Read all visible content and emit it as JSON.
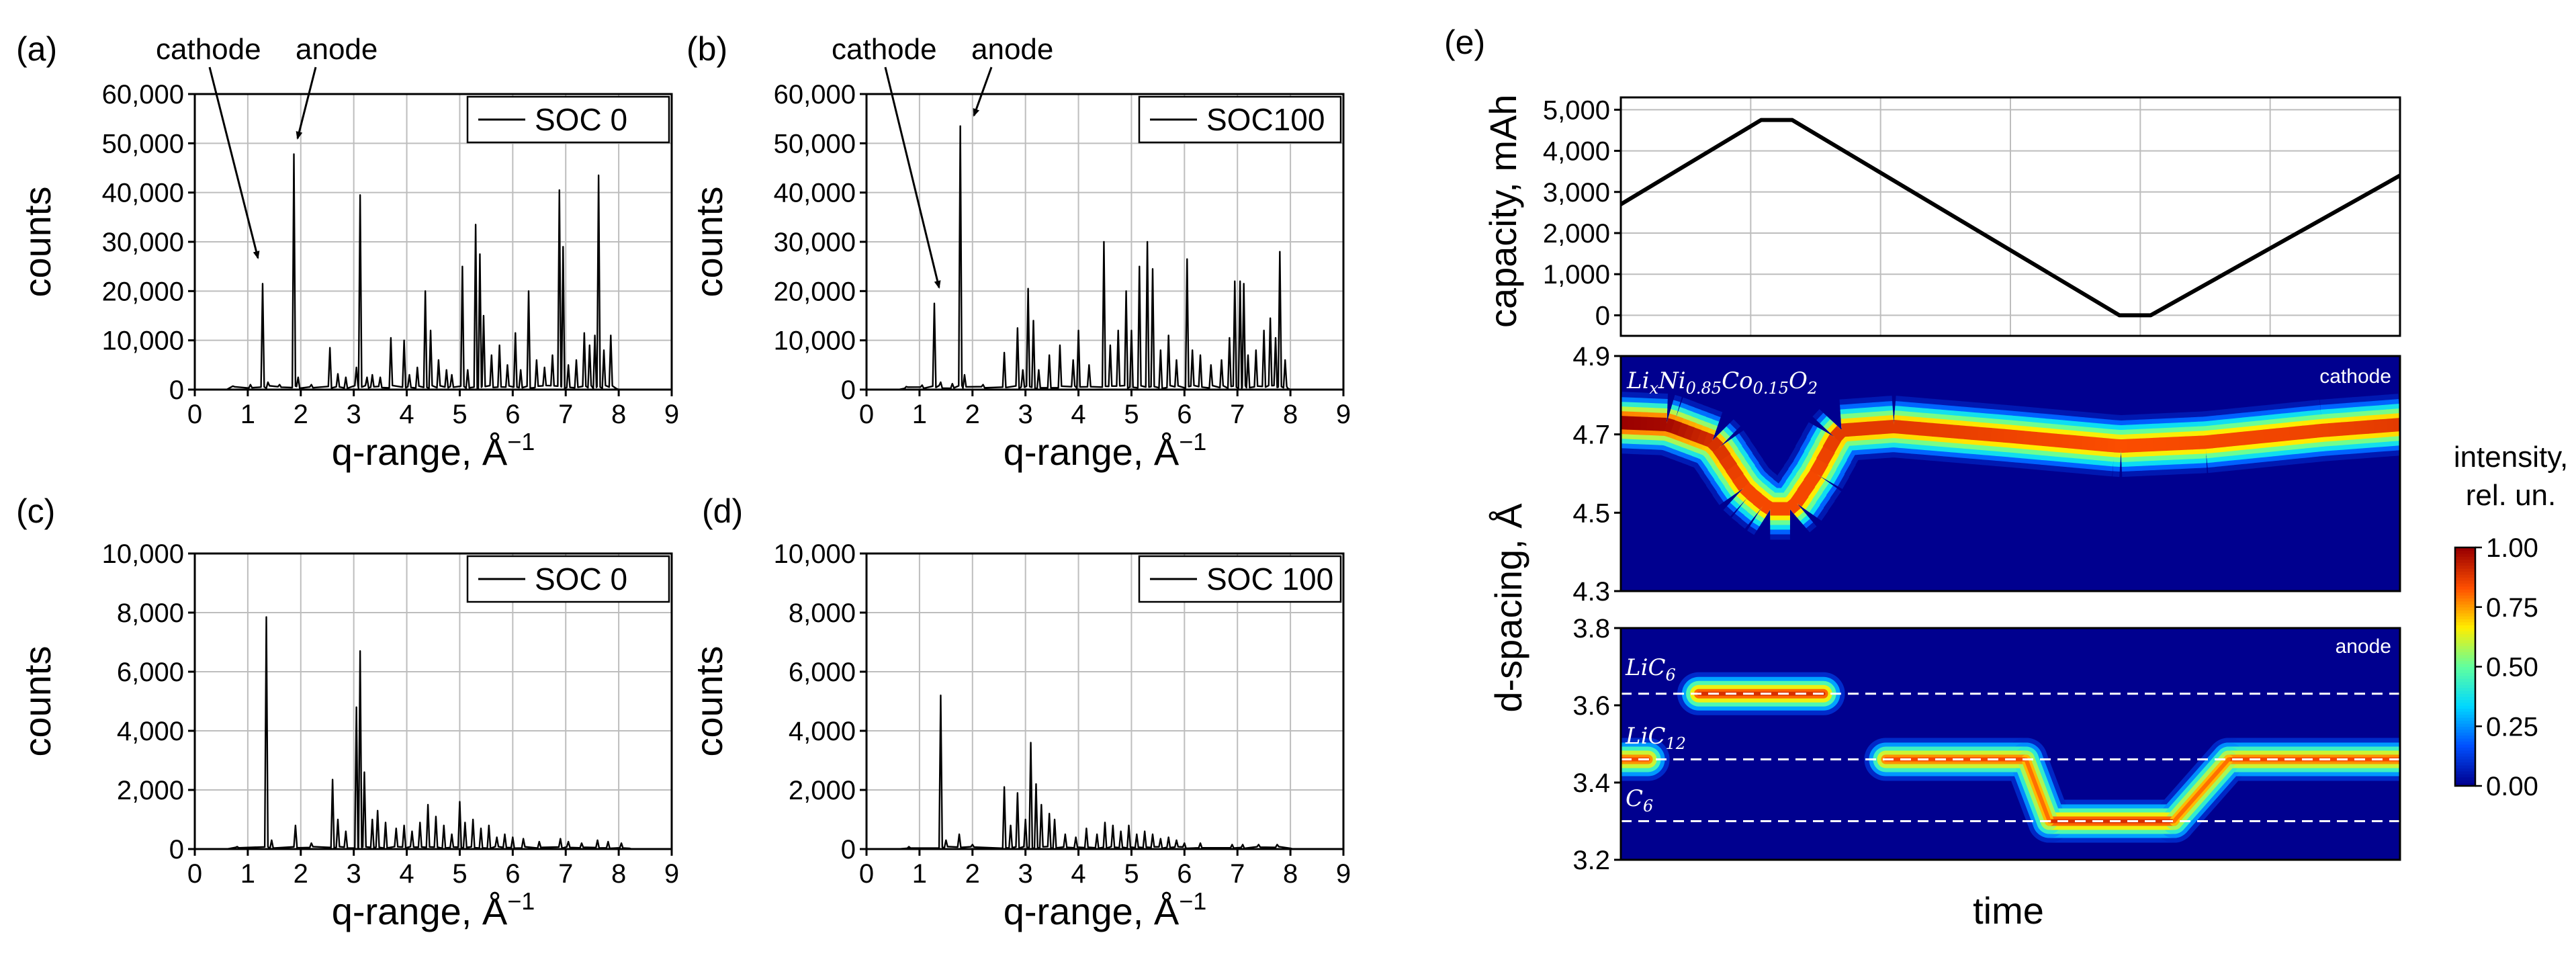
{
  "panels": [
    {
      "letter": "(a)",
      "legend": "SOC 0"
    },
    {
      "letter": "(b)",
      "legend": "SOC100"
    },
    {
      "letter": "(c)",
      "legend": "SOC 0"
    },
    {
      "letter": "(d)",
      "legend": "SOC 100"
    },
    {
      "letter": "(e)"
    }
  ],
  "annotations": {
    "cathode": "cathode",
    "anode": "anode"
  },
  "xlabel_main": "q-range, Å",
  "xlabel_exp": "−1",
  "ylabel_counts": "counts",
  "e": {
    "capacity_label": "capacity, mAh",
    "dspacing_label": "d-spacing, Å",
    "time_label": "time",
    "cathode_tag": "cathode",
    "anode_tag": "anode",
    "formula": {
      "base": "Li",
      "s1": "x",
      "mid1": "Ni",
      "s2": "0.85",
      "mid2": "Co",
      "s3": "0.15",
      "mid3": "O",
      "s4": "2"
    },
    "liC6": {
      "base": "LiC",
      "sub": "6"
    },
    "liC12": {
      "base": "LiC",
      "sub": "12"
    },
    "c6": {
      "base": "C",
      "sub": "6"
    },
    "colorbar_title1": "intensity,",
    "colorbar_title2": "rel. un.",
    "colormap": [
      "#00008f",
      "#0050ff",
      "#00d8ff",
      "#60ff9f",
      "#ffee00",
      "#ff5000",
      "#9a0000"
    ]
  },
  "chart_data": [
    {
      "panel": "(a)",
      "type": "line",
      "series": [
        {
          "name": "SOC 0"
        }
      ],
      "xlabel": "q-range, Å−1",
      "ylabel": "counts",
      "xlim": [
        0,
        9
      ],
      "ylim": [
        0,
        60000
      ],
      "xticks": [
        "0",
        "1",
        "2",
        "3",
        "4",
        "5",
        "6",
        "7",
        "8",
        "9"
      ],
      "yticks": [
        "0",
        "10,000",
        "20,000",
        "30,000",
        "40,000",
        "50,000",
        "60,000"
      ],
      "baseline": 600,
      "xmin_signal": 0.6,
      "xmax_signal": 7.95,
      "peaks": [
        [
          0.72,
          700
        ],
        [
          1.05,
          1000
        ],
        [
          1.28,
          21500
        ],
        [
          1.38,
          1500
        ],
        [
          1.6,
          1000
        ],
        [
          1.87,
          47800
        ],
        [
          1.95,
          2500
        ],
        [
          2.2,
          1000
        ],
        [
          2.55,
          8500
        ],
        [
          2.7,
          3200
        ],
        [
          2.85,
          2500
        ],
        [
          3.05,
          4500
        ],
        [
          3.12,
          39500
        ],
        [
          3.25,
          2500
        ],
        [
          3.35,
          3000
        ],
        [
          3.5,
          2500
        ],
        [
          3.7,
          10500
        ],
        [
          3.95,
          10000
        ],
        [
          4.05,
          3000
        ],
        [
          4.2,
          4500
        ],
        [
          4.35,
          20000
        ],
        [
          4.45,
          12000
        ],
        [
          4.6,
          6000
        ],
        [
          4.75,
          4000
        ],
        [
          4.85,
          3000
        ],
        [
          5.05,
          25000
        ],
        [
          5.15,
          4000
        ],
        [
          5.3,
          33500
        ],
        [
          5.38,
          27500
        ],
        [
          5.45,
          15000
        ],
        [
          5.6,
          7000
        ],
        [
          5.75,
          9000
        ],
        [
          5.9,
          5000
        ],
        [
          6.05,
          11500
        ],
        [
          6.15,
          4000
        ],
        [
          6.3,
          20000
        ],
        [
          6.45,
          6000
        ],
        [
          6.6,
          4500
        ],
        [
          6.75,
          7000
        ],
        [
          6.88,
          40500
        ],
        [
          6.95,
          29000
        ],
        [
          7.05,
          5000
        ],
        [
          7.2,
          6000
        ],
        [
          7.35,
          11500
        ],
        [
          7.45,
          9000
        ],
        [
          7.55,
          11000
        ],
        [
          7.62,
          43500
        ],
        [
          7.72,
          8000
        ],
        [
          7.85,
          11000
        ]
      ],
      "annotations": [
        "cathode",
        "anode"
      ]
    },
    {
      "panel": "(b)",
      "type": "line",
      "series": [
        {
          "name": "SOC100"
        }
      ],
      "xlabel": "q-range, Å−1",
      "ylabel": "counts",
      "xlim": [
        0,
        9
      ],
      "ylim": [
        0,
        60000
      ],
      "xticks": [
        "0",
        "1",
        "2",
        "3",
        "4",
        "5",
        "6",
        "7",
        "8",
        "9"
      ],
      "yticks": [
        "0",
        "10,000",
        "20,000",
        "30,000",
        "40,000",
        "50,000",
        "60,000"
      ],
      "baseline": 600,
      "xmin_signal": 0.6,
      "xmax_signal": 7.95,
      "peaks": [
        [
          0.75,
          600
        ],
        [
          1.05,
          900
        ],
        [
          1.28,
          17500
        ],
        [
          1.4,
          1500
        ],
        [
          1.62,
          1200
        ],
        [
          1.77,
          53500
        ],
        [
          1.85,
          3000
        ],
        [
          2.2,
          1000
        ],
        [
          2.6,
          7500
        ],
        [
          2.85,
          12500
        ],
        [
          2.95,
          4000
        ],
        [
          3.05,
          20500
        ],
        [
          3.15,
          14000
        ],
        [
          3.25,
          4000
        ],
        [
          3.45,
          7000
        ],
        [
          3.65,
          9000
        ],
        [
          3.9,
          6000
        ],
        [
          4.0,
          12000
        ],
        [
          4.2,
          5000
        ],
        [
          4.48,
          30000
        ],
        [
          4.6,
          9000
        ],
        [
          4.75,
          12000
        ],
        [
          4.9,
          20000
        ],
        [
          5.0,
          12000
        ],
        [
          5.15,
          25000
        ],
        [
          5.3,
          30000
        ],
        [
          5.4,
          24500
        ],
        [
          5.55,
          8000
        ],
        [
          5.7,
          11000
        ],
        [
          5.85,
          6000
        ],
        [
          6.05,
          26500
        ],
        [
          6.15,
          8000
        ],
        [
          6.3,
          7000
        ],
        [
          6.5,
          5000
        ],
        [
          6.7,
          6000
        ],
        [
          6.85,
          10500
        ],
        [
          6.95,
          22000
        ],
        [
          7.05,
          22000
        ],
        [
          7.12,
          21500
        ],
        [
          7.2,
          7000
        ],
        [
          7.35,
          8000
        ],
        [
          7.5,
          12000
        ],
        [
          7.62,
          14500
        ],
        [
          7.72,
          10500
        ],
        [
          7.8,
          28000
        ],
        [
          7.9,
          6000
        ]
      ],
      "annotations": [
        "cathode",
        "anode"
      ]
    },
    {
      "panel": "(c)",
      "type": "line",
      "series": [
        {
          "name": "SOC 0"
        }
      ],
      "xlabel": "q-range, Å−1",
      "ylabel": "counts",
      "xlim": [
        0,
        9
      ],
      "ylim": [
        0,
        10000
      ],
      "xticks": [
        "0",
        "1",
        "2",
        "3",
        "4",
        "5",
        "6",
        "7",
        "8",
        "9"
      ],
      "yticks": [
        "0",
        "2,000",
        "4,000",
        "6,000",
        "8,000",
        "10,000"
      ],
      "baseline": 60,
      "xmin_signal": 0.6,
      "xmax_signal": 8.2,
      "peaks": [
        [
          0.8,
          80
        ],
        [
          1.35,
          7850
        ],
        [
          1.45,
          300
        ],
        [
          1.9,
          800
        ],
        [
          2.2,
          200
        ],
        [
          2.6,
          2350
        ],
        [
          2.7,
          1000
        ],
        [
          2.85,
          600
        ],
        [
          3.05,
          4800
        ],
        [
          3.12,
          6700
        ],
        [
          3.2,
          2600
        ],
        [
          3.35,
          1000
        ],
        [
          3.45,
          1300
        ],
        [
          3.6,
          900
        ],
        [
          3.8,
          700
        ],
        [
          3.95,
          800
        ],
        [
          4.1,
          600
        ],
        [
          4.25,
          900
        ],
        [
          4.4,
          1500
        ],
        [
          4.55,
          1100
        ],
        [
          4.7,
          800
        ],
        [
          4.85,
          500
        ],
        [
          5.0,
          1600
        ],
        [
          5.1,
          900
        ],
        [
          5.25,
          1000
        ],
        [
          5.4,
          700
        ],
        [
          5.55,
          800
        ],
        [
          5.7,
          400
        ],
        [
          5.85,
          500
        ],
        [
          6.0,
          400
        ],
        [
          6.2,
          350
        ],
        [
          6.5,
          250
        ],
        [
          6.9,
          350
        ],
        [
          7.05,
          250
        ],
        [
          7.3,
          200
        ],
        [
          7.6,
          300
        ],
        [
          7.8,
          250
        ],
        [
          8.05,
          200
        ]
      ]
    },
    {
      "panel": "(d)",
      "type": "line",
      "series": [
        {
          "name": "SOC 100"
        }
      ],
      "xlabel": "q-range, Å−1",
      "ylabel": "counts",
      "xlim": [
        0,
        9
      ],
      "ylim": [
        0,
        10000
      ],
      "xticks": [
        "0",
        "1",
        "2",
        "3",
        "4",
        "5",
        "6",
        "7",
        "8",
        "9"
      ],
      "yticks": [
        "0",
        "2,000",
        "4,000",
        "6,000",
        "8,000",
        "10,000"
      ],
      "baseline": 60,
      "xmin_signal": 0.6,
      "xmax_signal": 8.0,
      "peaks": [
        [
          0.8,
          80
        ],
        [
          1.4,
          5200
        ],
        [
          1.5,
          300
        ],
        [
          1.75,
          500
        ],
        [
          2.0,
          150
        ],
        [
          2.6,
          2100
        ],
        [
          2.72,
          800
        ],
        [
          2.85,
          1900
        ],
        [
          3.0,
          1000
        ],
        [
          3.1,
          3600
        ],
        [
          3.2,
          2200
        ],
        [
          3.3,
          1500
        ],
        [
          3.45,
          1200
        ],
        [
          3.55,
          1000
        ],
        [
          3.75,
          500
        ],
        [
          3.95,
          400
        ],
        [
          4.15,
          700
        ],
        [
          4.35,
          500
        ],
        [
          4.5,
          900
        ],
        [
          4.65,
          800
        ],
        [
          4.8,
          600
        ],
        [
          4.95,
          800
        ],
        [
          5.1,
          500
        ],
        [
          5.25,
          600
        ],
        [
          5.4,
          500
        ],
        [
          5.55,
          350
        ],
        [
          5.7,
          400
        ],
        [
          5.85,
          300
        ],
        [
          6.0,
          200
        ],
        [
          6.3,
          200
        ],
        [
          6.9,
          150
        ],
        [
          7.1,
          150
        ],
        [
          7.4,
          150
        ],
        [
          7.75,
          150
        ]
      ]
    },
    {
      "panel": "(e) capacity",
      "type": "line",
      "ylabel": "capacity, mAh",
      "ylim": [
        -500,
        5300
      ],
      "yticks": [
        "0",
        "1,000",
        "2,000",
        "3,000",
        "4,000",
        "5,000"
      ],
      "x": [
        0,
        0.18,
        0.22,
        0.64,
        0.68,
        1.0
      ],
      "y": [
        2700,
        4750,
        4750,
        0,
        0,
        3400
      ]
    },
    {
      "panel": "(e) cathode",
      "type": "heatmap",
      "ylabel": "d-spacing, Å",
      "ylim": [
        4.3,
        4.9
      ],
      "yticks": [
        "4.3",
        "4.5",
        "4.7",
        "4.9"
      ],
      "ridge_x": [
        0,
        0.06,
        0.12,
        0.16,
        0.19,
        0.22,
        0.25,
        0.28,
        0.35,
        0.5,
        0.64,
        0.75,
        0.9,
        1.0
      ],
      "ridge_d": [
        4.73,
        4.725,
        4.68,
        4.56,
        4.51,
        4.51,
        4.6,
        4.71,
        4.72,
        4.695,
        4.67,
        4.68,
        4.71,
        4.725
      ],
      "intensity": [
        1.0,
        0.98,
        0.9,
        0.85,
        0.85,
        0.85,
        0.85,
        0.88,
        0.88,
        0.86,
        0.84,
        0.85,
        0.86,
        0.88
      ]
    },
    {
      "panel": "(e) anode",
      "type": "heatmap",
      "ylim": [
        3.2,
        3.8
      ],
      "yticks": [
        "3.2",
        "3.4",
        "3.6",
        "3.8"
      ],
      "reference_levels": [
        3.63,
        3.46,
        3.3
      ],
      "bands": [
        {
          "d": 3.46,
          "x": [
            0,
            0.035
          ],
          "intensity": 0.85
        },
        {
          "d": 3.63,
          "x": [
            0.1,
            0.26
          ],
          "intensity": 0.9
        },
        {
          "d": 3.46,
          "x": [
            0.34,
            0.52
          ],
          "intensity": 0.85
        },
        {
          "d": 3.3,
          "x": [
            0.55,
            0.71
          ],
          "intensity": 0.9
        },
        {
          "d": 3.46,
          "x": [
            0.78,
            1.0
          ],
          "intensity": 0.85
        }
      ]
    },
    {
      "panel": "(e) colorbar",
      "type": "heatmap",
      "range": [
        0,
        1
      ],
      "ticks": [
        "0.00",
        "0.25",
        "0.50",
        "0.75",
        "1.00"
      ]
    }
  ]
}
